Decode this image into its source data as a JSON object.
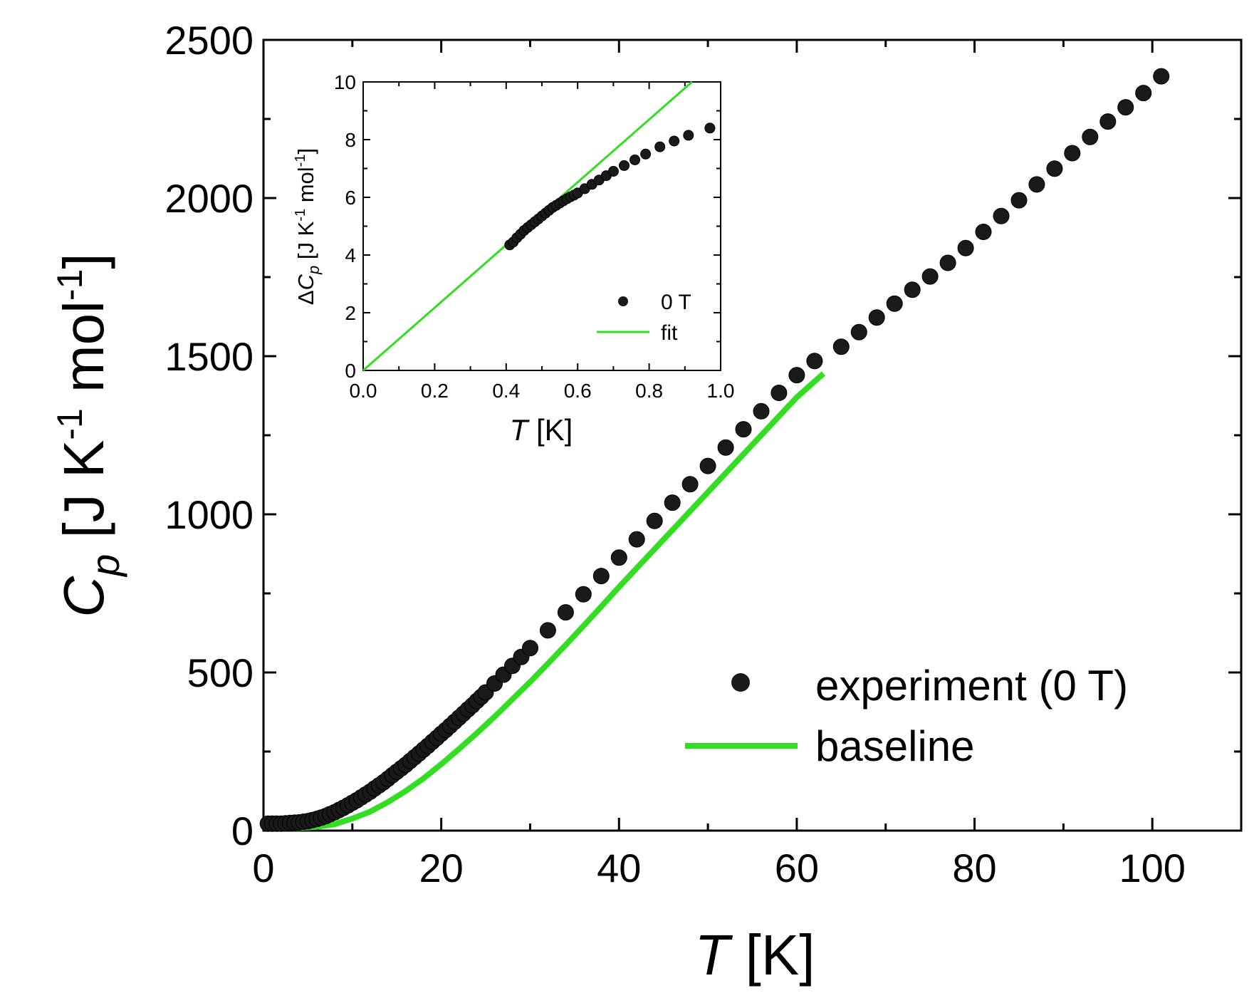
{
  "chart_data": [
    {
      "type": "scatter",
      "name": "main",
      "xlabel": "T [K]",
      "ylabel": "Cp [J K-1 mol-1]",
      "xlim": [
        0,
        110
      ],
      "ylim": [
        0,
        2500
      ],
      "xticks": [
        0,
        20,
        40,
        60,
        80,
        100
      ],
      "yticks": [
        0,
        500,
        1000,
        1500,
        2000,
        2500
      ],
      "xtick_labels": [
        "0",
        "20",
        "40",
        "60",
        "80",
        "100"
      ],
      "ytick_labels": [
        "0",
        "500",
        "1000",
        "1500",
        "2000",
        "2500"
      ],
      "legend_position": "bottom-right",
      "series": [
        {
          "name": "experiment (0 T)",
          "kind": "scatter",
          "color": "#1a1a1a",
          "x": [
            0.5,
            1,
            1.5,
            2,
            2.5,
            3,
            3.5,
            4,
            4.5,
            5,
            5.5,
            6,
            6.5,
            7,
            7.5,
            8,
            8.5,
            9,
            9.5,
            10,
            10.5,
            11,
            11.5,
            12,
            12.5,
            13,
            13.5,
            14,
            14.5,
            15,
            15.5,
            16,
            16.5,
            17,
            17.5,
            18,
            18.5,
            19,
            19.5,
            20,
            20.5,
            21,
            21.5,
            22,
            22.5,
            23,
            23.5,
            24,
            24.5,
            25,
            26,
            27,
            28,
            29,
            30,
            32,
            34,
            36,
            38,
            40,
            42,
            44,
            46,
            48,
            50,
            52,
            54,
            56,
            58,
            60,
            62,
            65,
            67,
            69,
            71,
            73,
            75,
            77,
            79,
            81,
            83,
            85,
            87,
            89,
            91,
            93,
            95,
            97,
            99,
            101
          ],
          "y": [
            22,
            22,
            22,
            22,
            23,
            24,
            25,
            26,
            28,
            30,
            33,
            37,
            41,
            46,
            52,
            58,
            65,
            72,
            80,
            88,
            96,
            105,
            114,
            123,
            133,
            143,
            153,
            164,
            175,
            186,
            197,
            208,
            220,
            232,
            244,
            256,
            268,
            281,
            293,
            306,
            318,
            331,
            344,
            357,
            370,
            383,
            396,
            410,
            423,
            437,
            465,
            493,
            521,
            549,
            577,
            633,
            690,
            747,
            805,
            863,
            921,
            979,
            1037,
            1095,
            1153,
            1211,
            1269,
            1326,
            1384,
            1440,
            1485,
            1530,
            1576,
            1622,
            1666,
            1710,
            1752,
            1795,
            1842,
            1893,
            1943,
            1993,
            2043,
            2093,
            2142,
            2193,
            2242,
            2287,
            2332,
            2385
          ]
        },
        {
          "name": "baseline",
          "kind": "line",
          "color": "#33dd22",
          "x": [
            0,
            4,
            6,
            8,
            10,
            12,
            14,
            16,
            18,
            20,
            22,
            24,
            26,
            28,
            30,
            32,
            34,
            36,
            38,
            40,
            42,
            44,
            46,
            48,
            50,
            52,
            54,
            56,
            58,
            60,
            63
          ],
          "y": [
            8,
            8,
            12,
            20,
            38,
            60,
            90,
            125,
            165,
            210,
            258,
            308,
            360,
            415,
            470,
            528,
            587,
            647,
            708,
            770,
            830,
            890,
            950,
            1010,
            1070,
            1130,
            1190,
            1250,
            1310,
            1370,
            1445
          ]
        }
      ]
    },
    {
      "type": "scatter",
      "name": "inset",
      "xlabel": "T [K]",
      "ylabel": "ΔCp [J K-1 mol-1]",
      "xlim": [
        0.0,
        1.0
      ],
      "ylim": [
        0,
        10
      ],
      "xticks": [
        0.0,
        0.2,
        0.4,
        0.6,
        0.8,
        1.0
      ],
      "yticks": [
        0,
        2,
        4,
        6,
        8,
        10
      ],
      "xtick_labels": [
        "0.0",
        "0.2",
        "0.4",
        "0.6",
        "0.8",
        "1.0"
      ],
      "ytick_labels": [
        "0",
        "2",
        "4",
        "6",
        "8",
        "10"
      ],
      "legend_position": "bottom-right",
      "series": [
        {
          "name": "0 T",
          "kind": "scatter",
          "color": "#1a1a1a",
          "x": [
            0.41,
            0.42,
            0.43,
            0.44,
            0.45,
            0.46,
            0.47,
            0.48,
            0.49,
            0.5,
            0.51,
            0.52,
            0.53,
            0.54,
            0.55,
            0.56,
            0.57,
            0.58,
            0.59,
            0.6,
            0.62,
            0.64,
            0.66,
            0.68,
            0.7,
            0.73,
            0.76,
            0.79,
            0.83,
            0.87,
            0.91,
            0.97
          ],
          "y": [
            4.35,
            4.45,
            4.6,
            4.72,
            4.85,
            4.95,
            5.05,
            5.15,
            5.25,
            5.35,
            5.45,
            5.55,
            5.65,
            5.72,
            5.8,
            5.88,
            5.95,
            6.02,
            6.08,
            6.15,
            6.3,
            6.45,
            6.6,
            6.75,
            6.9,
            7.1,
            7.3,
            7.5,
            7.75,
            7.95,
            8.15,
            8.4
          ]
        },
        {
          "name": "fit",
          "kind": "line",
          "color": "#33dd22",
          "x": [
            0.0,
            0.92
          ],
          "y": [
            0.0,
            10.0
          ]
        }
      ]
    }
  ]
}
